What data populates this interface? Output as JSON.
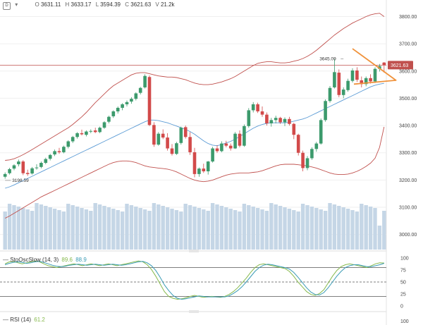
{
  "header": {
    "symbol_glyph": "D",
    "caret": "▾",
    "o_label": "O",
    "o_value": "3631.11",
    "h_label": "H",
    "h_value": "3633.17",
    "l_label": "L",
    "l_value": "3594.39",
    "c_label": "C",
    "c_value": "3621.63",
    "v_label": "V",
    "v_value": "21.2k"
  },
  "indicators": {
    "stoch": {
      "dash": "—",
      "name": "StoOscSlow (14, 3)",
      "k": "89.6",
      "d": "88.9",
      "k_color": "#86b94c",
      "d_color": "#3a9bb5"
    },
    "rsi": {
      "dash": "—",
      "name": "RSI (14)",
      "value": "61.2"
    }
  },
  "colors": {
    "up": "#3c9a6c",
    "down": "#d24a4a",
    "bb_outer": "#c0504d",
    "bb_mid": "#5b9bd5",
    "volume": "#c5d6e6",
    "price_line": "#c0504d",
    "triangle": "#f0923b"
  },
  "chart_data": [
    {
      "type": "candlestick",
      "title": "",
      "ylim": [
        2950,
        3840
      ],
      "y_ticks": [
        "3800.00",
        "3700.00",
        "3600.00",
        "3500.00",
        "3400.00",
        "3300.00",
        "3200.00",
        "3100.00",
        "3000.00"
      ],
      "current_price": {
        "label": "3621.63",
        "value": 3621.63
      },
      "annotations": [
        {
          "label": "3645.09",
          "value": 3645.09
        },
        {
          "label": "3198.59",
          "value": 3198.59
        }
      ],
      "ohlc": [
        [
          3212,
          3228,
          3205,
          3222
        ],
        [
          3225,
          3245,
          3220,
          3240
        ],
        [
          3242,
          3258,
          3236,
          3254
        ],
        [
          3258,
          3275,
          3250,
          3268
        ],
        [
          3268,
          3273,
          3218,
          3225
        ],
        [
          3226,
          3238,
          3215,
          3222
        ],
        [
          3224,
          3248,
          3220,
          3243
        ],
        [
          3244,
          3258,
          3238,
          3246
        ],
        [
          3248,
          3268,
          3243,
          3263
        ],
        [
          3263,
          3282,
          3258,
          3277
        ],
        [
          3278,
          3296,
          3272,
          3292
        ],
        [
          3294,
          3312,
          3288,
          3306
        ],
        [
          3306,
          3318,
          3296,
          3302
        ],
        [
          3302,
          3326,
          3298,
          3322
        ],
        [
          3322,
          3346,
          3316,
          3342
        ],
        [
          3342,
          3362,
          3336,
          3358
        ],
        [
          3358,
          3376,
          3352,
          3372
        ],
        [
          3372,
          3385,
          3364,
          3368
        ],
        [
          3366,
          3382,
          3360,
          3378
        ],
        [
          3378,
          3386,
          3372,
          3380
        ],
        [
          3382,
          3392,
          3372,
          3376
        ],
        [
          3376,
          3396,
          3372,
          3392
        ],
        [
          3392,
          3416,
          3388,
          3412
        ],
        [
          3414,
          3436,
          3408,
          3432
        ],
        [
          3434,
          3456,
          3428,
          3452
        ],
        [
          3452,
          3470,
          3444,
          3465
        ],
        [
          3465,
          3482,
          3456,
          3478
        ],
        [
          3478,
          3492,
          3470,
          3486
        ],
        [
          3488,
          3504,
          3480,
          3498
        ],
        [
          3498,
          3522,
          3492,
          3518
        ],
        [
          3520,
          3542,
          3514,
          3538
        ],
        [
          3540,
          3588,
          3536,
          3582
        ],
        [
          3578,
          3584,
          3398,
          3402
        ],
        [
          3402,
          3412,
          3322,
          3330
        ],
        [
          3330,
          3376,
          3326,
          3370
        ],
        [
          3370,
          3386,
          3350,
          3356
        ],
        [
          3356,
          3372,
          3308,
          3316
        ],
        [
          3316,
          3332,
          3290,
          3296
        ],
        [
          3296,
          3340,
          3292,
          3335
        ],
        [
          3336,
          3396,
          3330,
          3392
        ],
        [
          3394,
          3400,
          3352,
          3358
        ],
        [
          3358,
          3376,
          3292,
          3302
        ],
        [
          3302,
          3318,
          3210,
          3222
        ],
        [
          3222,
          3246,
          3212,
          3242
        ],
        [
          3242,
          3260,
          3226,
          3232
        ],
        [
          3232,
          3270,
          3220,
          3268
        ],
        [
          3268,
          3322,
          3264,
          3316
        ],
        [
          3316,
          3328,
          3300,
          3306
        ],
        [
          3306,
          3342,
          3302,
          3334
        ],
        [
          3334,
          3344,
          3320,
          3326
        ],
        [
          3326,
          3334,
          3308,
          3316
        ],
        [
          3316,
          3376,
          3314,
          3370
        ],
        [
          3370,
          3382,
          3320,
          3326
        ],
        [
          3326,
          3404,
          3322,
          3398
        ],
        [
          3398,
          3464,
          3392,
          3456
        ],
        [
          3456,
          3486,
          3448,
          3478
        ],
        [
          3478,
          3484,
          3446,
          3452
        ],
        [
          3452,
          3470,
          3432,
          3440
        ],
        [
          3440,
          3448,
          3400,
          3408
        ],
        [
          3408,
          3428,
          3396,
          3420
        ],
        [
          3420,
          3436,
          3408,
          3428
        ],
        [
          3428,
          3432,
          3406,
          3412
        ],
        [
          3412,
          3430,
          3398,
          3424
        ],
        [
          3424,
          3432,
          3400,
          3406
        ],
        [
          3406,
          3410,
          3350,
          3366
        ],
        [
          3366,
          3370,
          3290,
          3300
        ],
        [
          3300,
          3308,
          3232,
          3244
        ],
        [
          3244,
          3288,
          3236,
          3280
        ],
        [
          3280,
          3320,
          3274,
          3314
        ],
        [
          3314,
          3340,
          3304,
          3334
        ],
        [
          3334,
          3426,
          3330,
          3420
        ],
        [
          3420,
          3496,
          3414,
          3490
        ],
        [
          3490,
          3545,
          3484,
          3538
        ],
        [
          3540,
          3645,
          3536,
          3596
        ],
        [
          3594,
          3606,
          3504,
          3512
        ],
        [
          3512,
          3540,
          3500,
          3532
        ],
        [
          3530,
          3572,
          3524,
          3564
        ],
        [
          3564,
          3610,
          3558,
          3602
        ],
        [
          3602,
          3614,
          3560,
          3568
        ],
        [
          3566,
          3580,
          3540,
          3552
        ],
        [
          3552,
          3580,
          3544,
          3574
        ],
        [
          3574,
          3588,
          3554,
          3562
        ],
        [
          3562,
          3614,
          3556,
          3608
        ],
        [
          3608,
          3626,
          3598,
          3618
        ],
        [
          3631,
          3633,
          3594,
          3622
        ]
      ],
      "bollinger": {
        "upper": [
          3272,
          3274,
          3278,
          3285,
          3293,
          3302,
          3312,
          3322,
          3332,
          3342,
          3352,
          3362,
          3372,
          3382,
          3392,
          3404,
          3418,
          3432,
          3448,
          3466,
          3484,
          3500,
          3516,
          3532,
          3546,
          3556,
          3566,
          3576,
          3586,
          3592,
          3594,
          3594,
          3590,
          3586,
          3582,
          3580,
          3578,
          3578,
          3576,
          3572,
          3568,
          3562,
          3556,
          3552,
          3550,
          3550,
          3552,
          3556,
          3560,
          3566,
          3572,
          3580,
          3590,
          3600,
          3610,
          3620,
          3628,
          3632,
          3634,
          3634,
          3632,
          3630,
          3630,
          3632,
          3636,
          3640,
          3646,
          3654,
          3664,
          3676,
          3690,
          3704,
          3718,
          3732,
          3744,
          3756,
          3766,
          3776,
          3784,
          3792,
          3800,
          3806,
          3810,
          3812,
          3800
        ],
        "mid": [
          3170,
          3175,
          3182,
          3190,
          3198,
          3206,
          3214,
          3222,
          3230,
          3238,
          3246,
          3254,
          3262,
          3270,
          3278,
          3286,
          3294,
          3302,
          3310,
          3318,
          3326,
          3334,
          3342,
          3350,
          3358,
          3366,
          3374,
          3382,
          3390,
          3398,
          3406,
          3414,
          3420,
          3420,
          3418,
          3414,
          3410,
          3404,
          3398,
          3392,
          3386,
          3378,
          3368,
          3356,
          3344,
          3334,
          3328,
          3326,
          3330,
          3336,
          3342,
          3350,
          3360,
          3370,
          3380,
          3390,
          3398,
          3404,
          3408,
          3410,
          3410,
          3410,
          3410,
          3412,
          3416,
          3420,
          3424,
          3430,
          3438,
          3446,
          3454,
          3462,
          3470,
          3478,
          3486,
          3494,
          3502,
          3510,
          3518,
          3526,
          3534,
          3542,
          3548,
          3552,
          3555
        ],
        "lower": [
          3060,
          3068,
          3078,
          3088,
          3098,
          3108,
          3118,
          3128,
          3138,
          3146,
          3154,
          3162,
          3170,
          3178,
          3186,
          3194,
          3202,
          3210,
          3218,
          3226,
          3234,
          3242,
          3250,
          3258,
          3264,
          3268,
          3270,
          3270,
          3268,
          3264,
          3258,
          3252,
          3248,
          3246,
          3244,
          3242,
          3240,
          3236,
          3230,
          3222,
          3214,
          3206,
          3200,
          3196,
          3194,
          3196,
          3200,
          3206,
          3212,
          3218,
          3222,
          3224,
          3226,
          3226,
          3226,
          3228,
          3230,
          3234,
          3240,
          3246,
          3252,
          3256,
          3258,
          3258,
          3258,
          3256,
          3254,
          3252,
          3248,
          3244,
          3238,
          3232,
          3226,
          3222,
          3220,
          3220,
          3222,
          3226,
          3232,
          3240,
          3250,
          3262,
          3280,
          3320,
          3395
        ]
      }
    },
    {
      "type": "line",
      "title": "StoOscSlow (14, 3)",
      "ylim": [
        0,
        100
      ],
      "y_ticks": [
        "100",
        "75",
        "50",
        "25",
        "0"
      ],
      "levels": [
        80,
        50,
        20
      ],
      "series": [
        {
          "name": "89.6",
          "values": [
            88,
            92,
            93,
            90,
            88,
            90,
            92,
            94,
            92,
            88,
            84,
            82,
            80,
            82,
            84,
            86,
            88,
            86,
            84,
            86,
            88,
            86,
            84,
            86,
            88,
            86,
            84,
            86,
            88,
            90,
            92,
            94,
            92,
            86,
            76,
            62,
            46,
            30,
            20,
            16,
            14,
            15,
            17,
            20,
            22,
            20,
            18,
            19,
            20,
            19,
            18,
            20,
            24,
            30,
            38,
            48,
            58,
            70,
            80,
            86,
            88,
            86,
            84,
            82,
            80,
            78,
            72,
            62,
            50,
            40,
            30,
            24,
            22,
            26,
            34,
            48,
            62,
            74,
            82,
            86,
            88,
            86,
            84,
            82,
            80,
            84,
            88,
            90,
            89.6
          ]
        },
        {
          "name": "88.9",
          "values": [
            86,
            89,
            91,
            92,
            91,
            89,
            90,
            92,
            93,
            91,
            88,
            85,
            83,
            82,
            83,
            85,
            86,
            87,
            86,
            85,
            86,
            87,
            86,
            85,
            86,
            87,
            86,
            85,
            86,
            88,
            90,
            92,
            93,
            90,
            84,
            74,
            60,
            44,
            32,
            22,
            16,
            14,
            15,
            17,
            19,
            21,
            20,
            19,
            19,
            19,
            19,
            19,
            21,
            26,
            32,
            40,
            50,
            61,
            72,
            80,
            85,
            87,
            86,
            84,
            82,
            80,
            77,
            70,
            60,
            49,
            38,
            29,
            24,
            23,
            28,
            38,
            50,
            62,
            72,
            80,
            84,
            86,
            86,
            84,
            82,
            82,
            84,
            86,
            88.9
          ]
        }
      ]
    },
    {
      "type": "line",
      "title": "RSI (14)",
      "series": [
        {
          "name": "61.2",
          "values": [
            61.2
          ]
        }
      ]
    }
  ]
}
